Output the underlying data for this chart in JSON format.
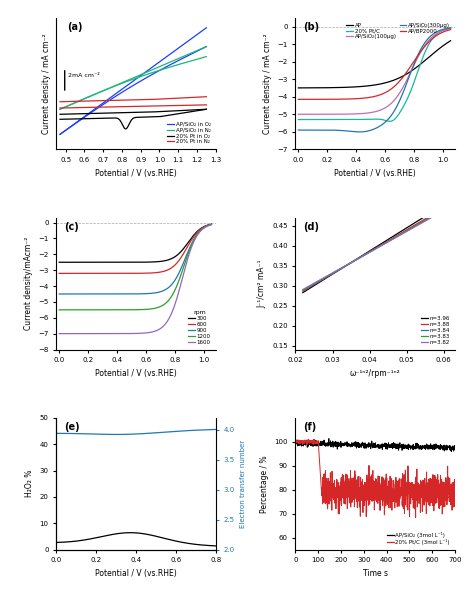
{
  "panel_a": {
    "title": "(a)",
    "xlabel": "Potential / V (vs.RHE)",
    "ylabel": "Current density / mA cm⁻²",
    "xlim": [
      0.45,
      1.3
    ],
    "scale_bar_text": "2mA cm⁻²",
    "legend": [
      "AP/SiO₂ in O₂",
      "AP/SiO₂ in N₂",
      "20% Pt in O₂",
      "20% Pt in N₂"
    ],
    "colors": [
      "#1a3fff",
      "#1ab87a",
      "#000000",
      "#d62728"
    ],
    "xticks": [
      0.5,
      0.6,
      0.7,
      0.8,
      0.9,
      1.0,
      1.1,
      1.2,
      1.3
    ]
  },
  "panel_b": {
    "title": "(b)",
    "xlabel": "Potential / V (vs.RHE)",
    "ylabel": "Current density / mA cm⁻²",
    "xlim": [
      -0.02,
      1.08
    ],
    "ylim": [
      -7,
      0.5
    ],
    "legend": [
      "AP",
      "20% Pt/C",
      "AP/SiO₂(100μg)",
      "AP/SiO₂(300μg)",
      "AP/BP2000"
    ],
    "colors": [
      "#000000",
      "#17b8a0",
      "#c46db0",
      "#1f77b4",
      "#d62728"
    ],
    "xticks": [
      0.0,
      0.2,
      0.4,
      0.6,
      0.8,
      1.0
    ]
  },
  "panel_c": {
    "title": "(c)",
    "xlabel": "Potential / V (vs.RHE)",
    "ylabel": "Current density/mAcm⁻²",
    "xlim": [
      -0.02,
      1.08
    ],
    "ylim": [
      -8,
      0.3
    ],
    "legend": [
      "300",
      "600",
      "900",
      "1200",
      "1600"
    ],
    "colors": [
      "#000000",
      "#d62728",
      "#1f77b4",
      "#2ca02c",
      "#9467bd"
    ],
    "xticks": [
      0.0,
      0.2,
      0.4,
      0.6,
      0.8,
      1.0
    ]
  },
  "panel_d": {
    "title": "(d)",
    "xlabel": "ω⁻¹ⁿ²/rpm⁻¹ⁿ²",
    "ylabel": "J⁻¹/cm² mA⁻¹",
    "xlim": [
      0.02,
      0.063
    ],
    "ylim": [
      0.14,
      0.47
    ],
    "legend": [
      "n=3.96",
      "n=3.88",
      "n=3.84",
      "n=3.83",
      "n=3.82"
    ],
    "colors": [
      "#000000",
      "#d62728",
      "#1f77b4",
      "#2ca02c",
      "#9467bd"
    ],
    "xticks": [
      0.02,
      0.03,
      0.04,
      0.05,
      0.06
    ]
  },
  "panel_e": {
    "xlabel": "Potential / V (vs.RHE)",
    "ylabel_left": "H₂O₂ %",
    "ylabel_right": "Electron transfer number",
    "xlim": [
      0.0,
      0.8
    ],
    "ylim_left": [
      0,
      50
    ],
    "ylim_right": [
      2.0,
      4.2
    ],
    "yticks_left": [
      0,
      10,
      20,
      30,
      40,
      50
    ],
    "yticks_right": [
      2.0,
      2.5,
      3.0,
      3.5,
      4.0
    ],
    "color_left": "#000000",
    "color_right": "#1f77b4",
    "xticks": [
      0.0,
      0.2,
      0.4,
      0.6,
      0.8
    ]
  },
  "panel_f": {
    "xlabel": "Time s",
    "ylabel": "Percentage / %",
    "xlim": [
      0,
      700
    ],
    "ylim": [
      55,
      110
    ],
    "legend": [
      "AP/SiO₂ (3mol L⁻¹)",
      "20% Pt/C (3mol L⁻¹)"
    ],
    "colors": [
      "#000000",
      "#d62728"
    ],
    "xticks": [
      0,
      100,
      200,
      300,
      400,
      500,
      600,
      700
    ],
    "yticks": [
      60,
      70,
      80,
      90,
      100
    ]
  },
  "background_color": "#ffffff"
}
